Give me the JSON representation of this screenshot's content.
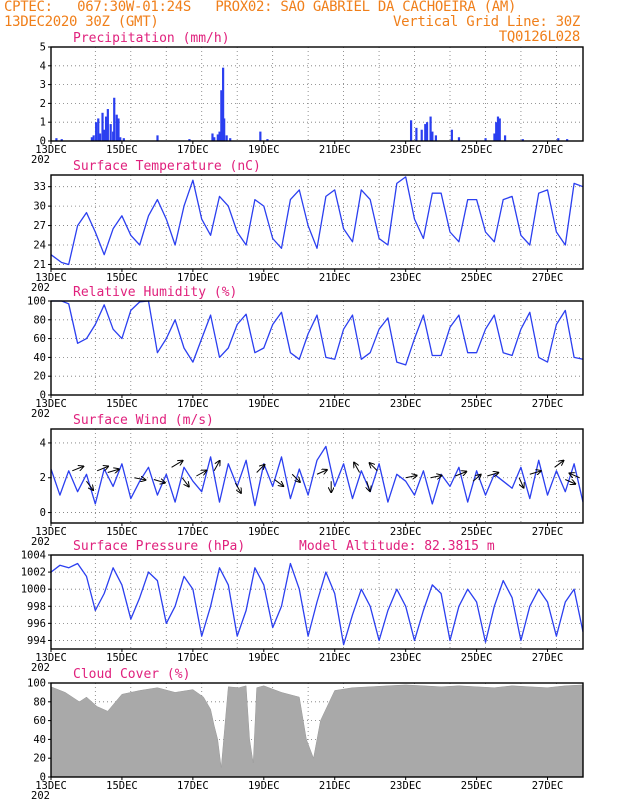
{
  "header": {
    "line1_left": "CPTEC:   067:30W-01:24S   PROX02: SAO GABRIEL DA CACHOEIRA (AM)",
    "line2_left": "13DEC2020 30Z (GMT)",
    "line2_right": "Vertical Grid Line: 30Z",
    "line3_right": "TQ0126L028"
  },
  "colors": {
    "header": "#f07f1a",
    "title": "#e0217d",
    "series": "#2b3ff0",
    "bars": "#2b3ff0",
    "cloud": "#a9a9a9"
  },
  "x_axis": {
    "categories": [
      "13DEC",
      "15DEC",
      "17DEC",
      "19DEC",
      "21DEC",
      "23DEC",
      "25DEC",
      "27DEC"
    ],
    "start_day": 13,
    "end_day": 28,
    "stub_label": "202"
  },
  "chart_data": [
    {
      "id": "precip",
      "type": "bar",
      "title": "Precipitation (mm/h)",
      "ylim": [
        0,
        5
      ],
      "yticks": [
        "0",
        "1",
        "2",
        "3",
        "4",
        "5"
      ],
      "x_days": [
        13.15,
        13.3,
        14.15,
        14.2,
        14.27,
        14.33,
        14.38,
        14.45,
        14.5,
        14.55,
        14.6,
        14.68,
        14.75,
        14.78,
        14.85,
        14.9,
        14.95,
        15.05,
        16.0,
        16.9,
        17.55,
        17.6,
        17.7,
        17.75,
        17.8,
        17.85,
        17.88,
        17.95,
        18.05,
        18.9,
        19.1,
        23.15,
        23.3,
        23.45,
        23.55,
        23.6,
        23.7,
        23.75,
        23.85,
        24.3,
        24.5,
        25.25,
        25.5,
        25.55,
        25.6,
        25.65,
        25.8,
        26.3,
        27.3,
        27.55
      ],
      "values": [
        0.15,
        0.1,
        0.2,
        0.3,
        1.0,
        1.2,
        0.4,
        1.5,
        0.6,
        1.3,
        1.7,
        0.9,
        0.5,
        2.3,
        1.4,
        1.2,
        0.2,
        0.15,
        0.3,
        0.1,
        0.4,
        0.2,
        0.35,
        0.5,
        2.7,
        3.9,
        1.2,
        0.3,
        0.15,
        0.5,
        0.1,
        1.1,
        0.7,
        0.6,
        0.9,
        1.0,
        1.3,
        0.5,
        0.3,
        0.6,
        0.2,
        0.15,
        0.4,
        1.0,
        1.3,
        1.2,
        0.3,
        0.1,
        0.15,
        0.1
      ]
    },
    {
      "id": "temp",
      "type": "line",
      "title": "Surface Temperature (nC)",
      "ylim": [
        20.3,
        34.8
      ],
      "yticks": [
        "21",
        "24",
        "27",
        "30",
        "33"
      ],
      "x_days": [
        13.0,
        13.3,
        13.5,
        13.75,
        14.0,
        14.25,
        14.5,
        14.75,
        15.0,
        15.25,
        15.5,
        15.75,
        16.0,
        16.25,
        16.5,
        16.75,
        17.0,
        17.25,
        17.5,
        17.75,
        18.0,
        18.25,
        18.5,
        18.75,
        19.0,
        19.25,
        19.5,
        19.75,
        20.0,
        20.25,
        20.5,
        20.75,
        21.0,
        21.25,
        21.5,
        21.75,
        22.0,
        22.25,
        22.5,
        22.75,
        23.0,
        23.25,
        23.5,
        23.75,
        24.0,
        24.25,
        24.5,
        24.75,
        25.0,
        25.25,
        25.5,
        25.75,
        26.0,
        26.25,
        26.5,
        26.75,
        27.0,
        27.25,
        27.5,
        27.75,
        28.0
      ],
      "values": [
        22.5,
        21.3,
        21.0,
        27.0,
        29.0,
        26.0,
        22.5,
        26.5,
        28.5,
        25.5,
        24.0,
        28.5,
        31.0,
        28.0,
        24.0,
        30.0,
        34.0,
        28.0,
        25.5,
        31.5,
        30.0,
        26.0,
        24.0,
        31.0,
        30.0,
        25.0,
        23.5,
        31.0,
        32.5,
        27.0,
        23.5,
        31.5,
        32.5,
        26.5,
        24.5,
        32.5,
        31.0,
        25.0,
        24.0,
        33.5,
        34.5,
        28.0,
        25.0,
        32.0,
        32.0,
        26.0,
        24.5,
        31.0,
        31.0,
        26.0,
        24.5,
        31.0,
        31.5,
        25.5,
        24.0,
        32.0,
        32.5,
        26.0,
        24.0,
        33.5,
        33.0
      ]
    },
    {
      "id": "rh",
      "type": "line",
      "title": "Relative Humidity (%)",
      "ylim": [
        0,
        100
      ],
      "yticks": [
        "0",
        "20",
        "40",
        "60",
        "80",
        "100"
      ],
      "x_days": [
        13.0,
        13.3,
        13.5,
        13.75,
        14.0,
        14.25,
        14.5,
        14.75,
        15.0,
        15.25,
        15.5,
        15.75,
        16.0,
        16.25,
        16.5,
        16.75,
        17.0,
        17.25,
        17.5,
        17.75,
        18.0,
        18.25,
        18.5,
        18.75,
        19.0,
        19.25,
        19.5,
        19.75,
        20.0,
        20.25,
        20.5,
        20.75,
        21.0,
        21.25,
        21.5,
        21.75,
        22.0,
        22.25,
        22.5,
        22.75,
        23.0,
        23.25,
        23.5,
        23.75,
        24.0,
        24.25,
        24.5,
        24.75,
        25.0,
        25.25,
        25.5,
        25.75,
        26.0,
        26.25,
        26.5,
        26.75,
        27.0,
        27.25,
        27.5,
        27.75,
        28.0
      ],
      "values": [
        100,
        100,
        97,
        55,
        60,
        75,
        96,
        70,
        60,
        90,
        99,
        100,
        45,
        60,
        80,
        50,
        35,
        60,
        85,
        40,
        50,
        75,
        86,
        45,
        50,
        75,
        88,
        45,
        38,
        65,
        85,
        40,
        38,
        70,
        85,
        38,
        45,
        70,
        82,
        35,
        32,
        60,
        85,
        42,
        42,
        72,
        85,
        45,
        45,
        70,
        85,
        45,
        42,
        70,
        88,
        40,
        35,
        75,
        90,
        40,
        38
      ]
    },
    {
      "id": "wind",
      "type": "line",
      "title": "Surface Wind (m/s)",
      "ylim": [
        -0.6,
        4.8
      ],
      "yticks": [
        "0",
        "2",
        "4"
      ],
      "x_days": [
        13.0,
        13.25,
        13.5,
        13.75,
        14.0,
        14.25,
        14.5,
        14.75,
        15.0,
        15.25,
        15.5,
        15.75,
        16.0,
        16.25,
        16.5,
        16.75,
        17.0,
        17.25,
        17.5,
        17.75,
        18.0,
        18.25,
        18.5,
        18.75,
        19.0,
        19.25,
        19.5,
        19.75,
        20.0,
        20.25,
        20.5,
        20.75,
        21.0,
        21.25,
        21.5,
        21.75,
        22.0,
        22.25,
        22.5,
        22.75,
        23.0,
        23.25,
        23.5,
        23.75,
        24.0,
        24.25,
        24.5,
        24.75,
        25.0,
        25.25,
        25.5,
        25.75,
        26.0,
        26.25,
        26.5,
        26.75,
        27.0,
        27.25,
        27.5,
        27.75,
        28.0
      ],
      "values": [
        2.5,
        1.0,
        2.4,
        1.2,
        2.2,
        0.5,
        2.5,
        1.5,
        2.8,
        0.8,
        1.8,
        2.6,
        1.0,
        2.2,
        0.6,
        2.6,
        1.8,
        1.2,
        3.2,
        0.6,
        2.8,
        1.5,
        3.0,
        0.4,
        2.8,
        1.5,
        3.2,
        0.8,
        2.5,
        1.0,
        3.0,
        3.8,
        1.5,
        2.8,
        0.8,
        2.4,
        1.2,
        2.8,
        0.6,
        2.2,
        1.8,
        1.0,
        2.4,
        0.5,
        2.2,
        1.5,
        2.6,
        0.6,
        2.4,
        1.0,
        2.2,
        1.8,
        1.4,
        2.6,
        0.8,
        3.0,
        1.0,
        2.4,
        1.2,
        2.8,
        0.6
      ],
      "vectors": [
        {
          "day": 13.6,
          "y": 2.4,
          "dx": 1,
          "dy": 0.4
        },
        {
          "day": 14.0,
          "y": 1.8,
          "dx": 0.6,
          "dy": -0.8
        },
        {
          "day": 14.3,
          "y": 2.4,
          "dx": 1,
          "dy": 0.4
        },
        {
          "day": 14.6,
          "y": 2.3,
          "dx": 1,
          "dy": 0.3
        },
        {
          "day": 15.35,
          "y": 2.0,
          "dx": 1,
          "dy": -0.2
        },
        {
          "day": 15.9,
          "y": 1.9,
          "dx": 1,
          "dy": -0.3
        },
        {
          "day": 16.4,
          "y": 2.6,
          "dx": 1,
          "dy": 0.6
        },
        {
          "day": 16.7,
          "y": 2.0,
          "dx": 0.6,
          "dy": -0.8
        },
        {
          "day": 17.1,
          "y": 2.1,
          "dx": 0.9,
          "dy": 0.5
        },
        {
          "day": 17.6,
          "y": 2.4,
          "dx": 0.5,
          "dy": 0.9
        },
        {
          "day": 18.2,
          "y": 1.7,
          "dx": 0.5,
          "dy": -0.9
        },
        {
          "day": 18.8,
          "y": 2.3,
          "dx": 0.7,
          "dy": 0.7
        },
        {
          "day": 19.3,
          "y": 1.9,
          "dx": 0.8,
          "dy": -0.6
        },
        {
          "day": 19.8,
          "y": 2.2,
          "dx": 0.7,
          "dy": -0.7
        },
        {
          "day": 20.5,
          "y": 2.2,
          "dx": 0.9,
          "dy": 0.4
        },
        {
          "day": 20.9,
          "y": 1.8,
          "dx": 0,
          "dy": -1
        },
        {
          "day": 21.7,
          "y": 2.3,
          "dx": -0.5,
          "dy": 0.9
        },
        {
          "day": 21.9,
          "y": 1.8,
          "dx": 0.3,
          "dy": -0.9
        },
        {
          "day": 22.2,
          "y": 2.4,
          "dx": -0.7,
          "dy": 0.7
        },
        {
          "day": 23.0,
          "y": 2.0,
          "dx": 1,
          "dy": 0.2
        },
        {
          "day": 23.7,
          "y": 2.0,
          "dx": 1,
          "dy": 0.2
        },
        {
          "day": 24.4,
          "y": 2.1,
          "dx": 1,
          "dy": 0.4
        },
        {
          "day": 24.9,
          "y": 1.8,
          "dx": 0.7,
          "dy": 0.6
        },
        {
          "day": 25.3,
          "y": 2.1,
          "dx": 1,
          "dy": 0.3
        },
        {
          "day": 26.2,
          "y": 2.0,
          "dx": 0.4,
          "dy": -0.9
        },
        {
          "day": 26.5,
          "y": 2.2,
          "dx": 1,
          "dy": 0.3
        },
        {
          "day": 27.2,
          "y": 2.6,
          "dx": 0.8,
          "dy": 0.6
        },
        {
          "day": 27.5,
          "y": 1.9,
          "dx": 0.9,
          "dy": -0.4
        },
        {
          "day": 27.9,
          "y": 2.0,
          "dx": -0.9,
          "dy": 0.4
        }
      ]
    },
    {
      "id": "pres",
      "type": "line",
      "title": "Surface Pressure (hPa)",
      "annotation": "Model Altitude: 82.3815 m",
      "ylim": [
        993.0,
        1004.0
      ],
      "yticks": [
        "994",
        "996",
        "998",
        "1000",
        "1002",
        "1004"
      ],
      "x_days": [
        13.0,
        13.25,
        13.5,
        13.75,
        14.0,
        14.25,
        14.5,
        14.75,
        15.0,
        15.25,
        15.5,
        15.75,
        16.0,
        16.25,
        16.5,
        16.75,
        17.0,
        17.25,
        17.5,
        17.75,
        18.0,
        18.25,
        18.5,
        18.75,
        19.0,
        19.25,
        19.5,
        19.75,
        20.0,
        20.25,
        20.5,
        20.75,
        21.0,
        21.25,
        21.5,
        21.75,
        22.0,
        22.25,
        22.5,
        22.75,
        23.0,
        23.25,
        23.5,
        23.75,
        24.0,
        24.25,
        24.5,
        24.75,
        25.0,
        25.25,
        25.5,
        25.75,
        26.0,
        26.25,
        26.5,
        26.75,
        27.0,
        27.25,
        27.5,
        27.75,
        28.0
      ],
      "values": [
        1002.0,
        1002.8,
        1002.5,
        1003.0,
        1001.5,
        997.5,
        999.5,
        1002.5,
        1000.5,
        996.5,
        999.0,
        1002.0,
        1001.0,
        996.0,
        998.0,
        1001.5,
        1000.0,
        994.5,
        998.0,
        1002.5,
        1000.5,
        994.5,
        997.5,
        1002.5,
        1000.5,
        995.5,
        998.0,
        1003.0,
        1000.0,
        994.5,
        998.5,
        1002.0,
        999.5,
        993.5,
        997.0,
        1000.0,
        998.0,
        994.0,
        997.5,
        1000.0,
        998.0,
        994.0,
        997.5,
        1000.5,
        999.5,
        994.0,
        998.0,
        1000.0,
        998.5,
        993.8,
        998.0,
        1001.0,
        999.0,
        994.0,
        998.0,
        1000.0,
        998.5,
        994.5,
        998.5,
        1000.0,
        995.0
      ]
    },
    {
      "id": "cloud",
      "type": "area",
      "title": "Cloud Cover (%)",
      "ylim": [
        0,
        100
      ],
      "yticks": [
        "0",
        "20",
        "40",
        "60",
        "80",
        "100"
      ],
      "x_days": [
        13.0,
        13.4,
        13.8,
        14.0,
        14.3,
        14.6,
        15.0,
        15.5,
        16.0,
        16.5,
        17.0,
        17.3,
        17.5,
        17.6,
        17.7,
        17.8,
        18.0,
        18.3,
        18.5,
        18.6,
        18.7,
        18.8,
        19.0,
        19.5,
        20.0,
        20.2,
        20.4,
        20.6,
        21.0,
        21.5,
        22.0,
        22.5,
        23.0,
        23.5,
        24.0,
        24.5,
        25.0,
        25.5,
        26.0,
        26.5,
        27.0,
        27.5,
        28.0
      ],
      "values": [
        96,
        90,
        80,
        85,
        75,
        70,
        88,
        92,
        95,
        90,
        93,
        85,
        72,
        55,
        40,
        10,
        96,
        95,
        97,
        40,
        15,
        95,
        97,
        90,
        85,
        40,
        20,
        60,
        92,
        95,
        96,
        97,
        98,
        97,
        96,
        97,
        96,
        95,
        97,
        96,
        95,
        97,
        98
      ]
    }
  ]
}
